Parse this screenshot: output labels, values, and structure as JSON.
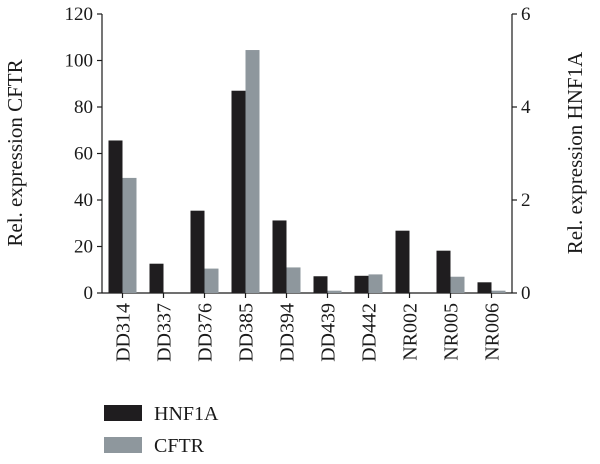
{
  "chart_data": {
    "type": "bar",
    "categories": [
      "DD314",
      "DD337",
      "DD376",
      "DD385",
      "DD394",
      "DD439",
      "DD442",
      "NR002",
      "NR005",
      "NR006"
    ],
    "series": [
      {
        "name": "HNF1A",
        "axis": "right",
        "color": "#1f1d1f",
        "values": [
          3.28,
          0.63,
          1.77,
          4.35,
          1.56,
          0.36,
          0.37,
          1.34,
          0.91,
          0.23
        ]
      },
      {
        "name": "CFTR",
        "axis": "left",
        "color": "#8e979d",
        "values": [
          49.5,
          0,
          10.5,
          104.5,
          11.0,
          1.0,
          8.0,
          0,
          7.0,
          1.0
        ]
      }
    ],
    "ylabel_left": "Rel. expression CFTR",
    "ylabel_right": "Rel. expression HNF1A",
    "ylim_left": [
      0,
      120
    ],
    "ylim_right": [
      0,
      6
    ],
    "yticks_left": [
      0,
      20,
      40,
      60,
      80,
      100,
      120
    ],
    "yticks_right": [
      0,
      2,
      4,
      6
    ],
    "legend_position": "bottom-left",
    "grid": false
  }
}
